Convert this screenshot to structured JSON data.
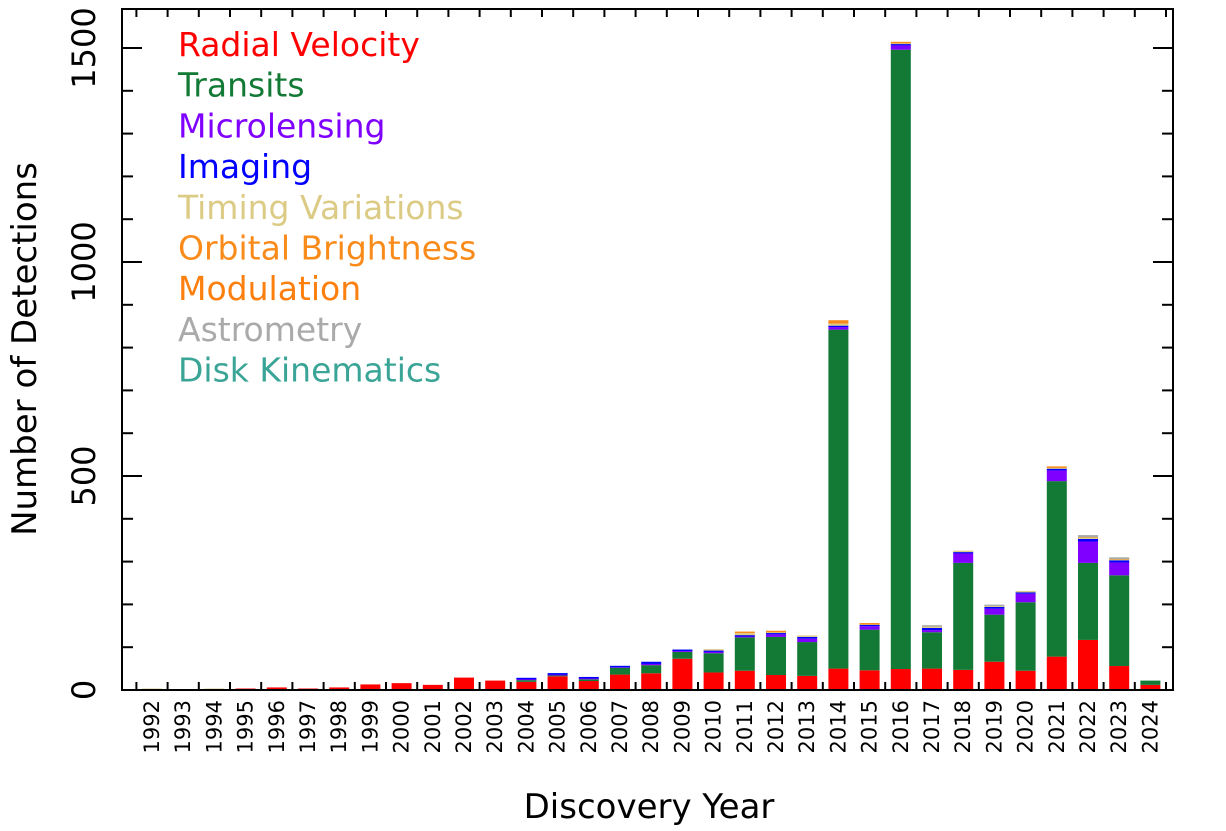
{
  "chart_data": {
    "type": "bar",
    "stacked": true,
    "xlabel": "Discovery Year",
    "ylabel": "Number of Detections",
    "ylim": [
      0,
      1500
    ],
    "yticks": [
      0,
      500,
      1000,
      1500
    ],
    "legend_position": "top-left",
    "categories": [
      "1992",
      "1993",
      "1994",
      "1995",
      "1996",
      "1997",
      "1998",
      "1999",
      "2000",
      "2001",
      "2002",
      "2003",
      "2004",
      "2005",
      "2006",
      "2007",
      "2008",
      "2009",
      "2010",
      "2011",
      "2012",
      "2013",
      "2014",
      "2015",
      "2016",
      "2017",
      "2018",
      "2019",
      "2020",
      "2021",
      "2022",
      "2023",
      "2024"
    ],
    "series": [
      {
        "name": "Radial Velocity",
        "color": "#ff0000",
        "values": [
          0,
          0,
          0,
          1,
          6,
          1,
          6,
          13,
          16,
          12,
          29,
          22,
          19,
          32,
          21,
          36,
          39,
          73,
          41,
          45,
          35,
          33,
          50,
          46,
          49,
          50,
          47,
          66,
          45,
          78,
          117,
          56,
          12
        ]
      },
      {
        "name": "Transits",
        "color": "#137a36",
        "values": [
          0,
          0,
          0,
          0,
          0,
          0,
          0,
          0,
          0,
          0,
          0,
          0,
          4,
          2,
          4,
          16,
          19,
          16,
          45,
          78,
          89,
          79,
          792,
          95,
          1447,
          85,
          250,
          110,
          160,
          410,
          180,
          212,
          10
        ]
      },
      {
        "name": "Microlensing",
        "color": "#8000ff",
        "values": [
          0,
          0,
          0,
          0,
          0,
          0,
          0,
          0,
          0,
          0,
          0,
          0,
          2,
          2,
          2,
          1,
          3,
          2,
          3,
          2,
          6,
          8,
          6,
          8,
          10,
          5,
          22,
          14,
          20,
          25,
          50,
          30,
          0
        ]
      },
      {
        "name": "Imaging",
        "color": "#0000ff",
        "values": [
          0,
          0,
          0,
          0,
          0,
          0,
          0,
          0,
          0,
          0,
          0,
          0,
          1,
          1,
          3,
          1,
          5,
          2,
          3,
          3,
          3,
          4,
          3,
          3,
          3,
          5,
          3,
          4,
          3,
          4,
          6,
          5,
          0
        ]
      },
      {
        "name": "Timing Variations",
        "color": "#dccb85",
        "values": [
          2,
          0,
          1,
          0,
          0,
          0,
          0,
          0,
          0,
          0,
          0,
          0,
          0,
          0,
          0,
          0,
          0,
          0,
          1,
          5,
          2,
          1,
          5,
          1,
          2,
          3,
          1,
          2,
          2,
          2,
          3,
          2,
          0
        ]
      },
      {
        "name": "Orbital Brightness",
        "color": "#f98b1a",
        "values": [
          0,
          0,
          0,
          0,
          0,
          0,
          0,
          0,
          0,
          0,
          0,
          0,
          0,
          0,
          0,
          0,
          0,
          0,
          0,
          3,
          2,
          0,
          8,
          1,
          1,
          0,
          0,
          0,
          0,
          2,
          1,
          1,
          0
        ]
      },
      {
        "name": "Modulation",
        "color": "#fd7f0d",
        "values": [
          0,
          0,
          0,
          0,
          0,
          0,
          0,
          0,
          0,
          0,
          0,
          0,
          0,
          0,
          0,
          0,
          0,
          0,
          0,
          0,
          0,
          0,
          0,
          0,
          0,
          0,
          0,
          0,
          0,
          0,
          0,
          0,
          0
        ]
      },
      {
        "name": "Astrometry",
        "color": "#aaaaaa",
        "values": [
          0,
          0,
          0,
          0,
          0,
          0,
          0,
          0,
          0,
          0,
          0,
          0,
          0,
          0,
          0,
          0,
          0,
          0,
          0,
          0,
          0,
          0,
          0,
          0,
          0,
          1,
          0,
          2,
          0,
          0,
          5,
          4,
          0
        ]
      },
      {
        "name": "Disk Kinematics",
        "color": "#3aa596",
        "values": [
          0,
          0,
          0,
          0,
          0,
          0,
          0,
          0,
          0,
          0,
          0,
          0,
          0,
          0,
          0,
          0,
          0,
          0,
          0,
          0,
          0,
          0,
          0,
          0,
          0,
          0,
          0,
          0,
          0,
          0,
          0,
          0,
          0
        ]
      }
    ]
  }
}
